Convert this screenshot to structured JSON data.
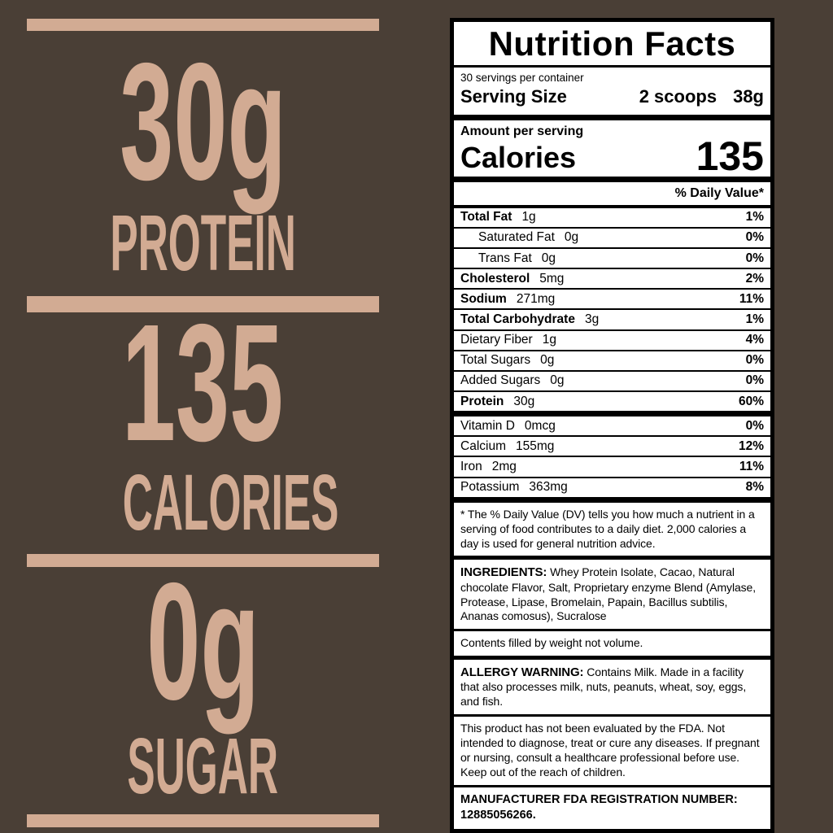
{
  "colors": {
    "background": "#4a3f36",
    "accent_tan": "#d2ab93",
    "panel_background": "#ffffff",
    "panel_border": "#000000",
    "panel_text": "#000000"
  },
  "left_panel": {
    "stats": [
      {
        "value": "30g",
        "label": "PROTEIN"
      },
      {
        "value": "135",
        "label": "CALORIES"
      },
      {
        "value": "0g",
        "label": "SUGAR"
      }
    ]
  },
  "nutrition_label": {
    "title": "Nutrition Facts",
    "servings_per_container": "30 servings per container",
    "serving_size_label": "Serving Size",
    "serving_size_value": "2 scoops",
    "serving_size_weight": "38g",
    "amount_per_serving": "Amount per serving",
    "calories_label": "Calories",
    "calories_value": "135",
    "daily_value_header": "% Daily Value*",
    "nutrients": [
      {
        "name": "Total Fat",
        "amount": "1g",
        "dv": "1%"
      },
      {
        "name": "Saturated Fat",
        "amount": "0g",
        "dv": "0%"
      },
      {
        "name": "Trans Fat",
        "amount": "0g",
        "dv": "0%"
      },
      {
        "name": "Cholesterol",
        "amount": "5mg",
        "dv": "2%"
      },
      {
        "name": "Sodium",
        "amount": "271mg",
        "dv": "11%"
      },
      {
        "name": "Total Carbohydrate",
        "amount": "3g",
        "dv": "1%"
      },
      {
        "name": "Dietary Fiber",
        "amount": "1g",
        "dv": "4%"
      },
      {
        "name": "Total Sugars",
        "amount": "0g",
        "dv": "0%"
      },
      {
        "name": "Added Sugars",
        "amount": "0g",
        "dv": "0%"
      },
      {
        "name": "Protein",
        "amount": "30g",
        "dv": "60%"
      }
    ],
    "micronutrients": [
      {
        "name": "Vitamin D",
        "amount": "0mcg",
        "dv": "0%"
      },
      {
        "name": "Calcium",
        "amount": "155mg",
        "dv": "12%"
      },
      {
        "name": "Iron",
        "amount": "2mg",
        "dv": "11%"
      },
      {
        "name": "Potassium",
        "amount": "363mg",
        "dv": "8%"
      }
    ],
    "footnote": "* The % Daily Value (DV) tells you how much a nutrient in a serving of food contributes to a daily diet. 2,000 calories a day is used for general nutrition advice.",
    "ingredients_label": "INGREDIENTS:",
    "ingredients_text": " Whey Protein Isolate, Cacao, Natural chocolate Flavor, Salt, Proprietary enzyme Blend (Amylase, Protease, Lipase, Bromelain, Papain, Bacillus subtilis, Ananas comosus), Sucralose",
    "contents_note": "Contents filled by weight not volume.",
    "allergy_label": "ALLERGY WARNING:",
    "allergy_text": " Contains Milk. Made in a facility that also processes milk, nuts, peanuts, wheat, soy, eggs, and fish.",
    "fda_disclaimer": "This product has not been evaluated by the FDA. Not intended to diagnose, treat or cure any diseases. If pregnant or nursing, consult a healthcare professional before use. Keep out of the reach of children.",
    "manufacturer_label": "MANUFACTURER FDA REGISTRATION NUMBER:",
    "manufacturer_number": "12885056266."
  }
}
